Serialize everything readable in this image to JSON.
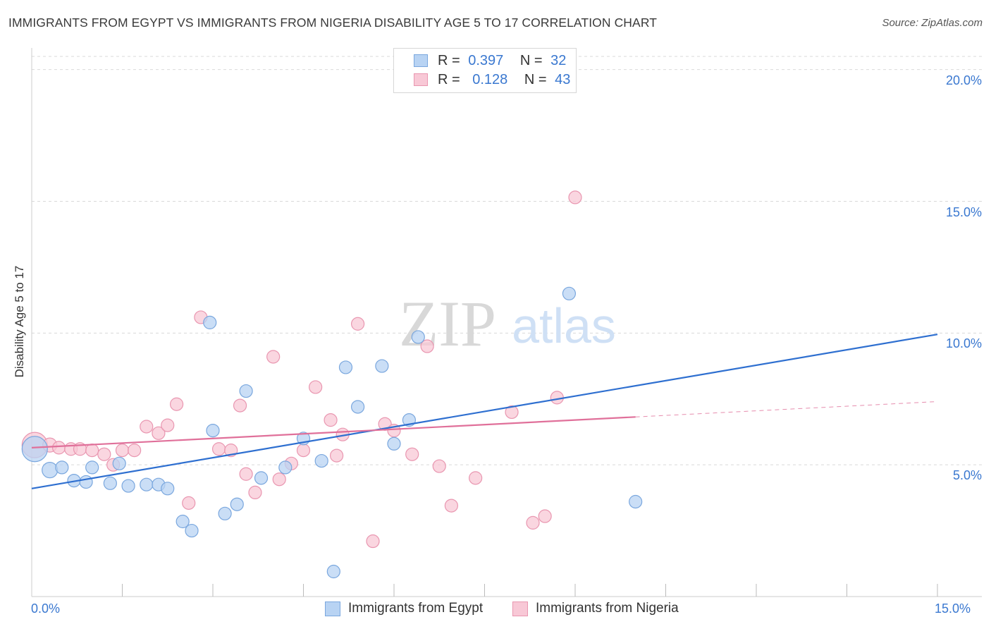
{
  "header": {
    "title": "IMMIGRANTS FROM EGYPT VS IMMIGRANTS FROM NIGERIA DISABILITY AGE 5 TO 17 CORRELATION CHART",
    "source": "Source: ZipAtlas.com"
  },
  "watermark": {
    "zip": "ZIP",
    "atlas": "atlas"
  },
  "legend": {
    "rows": [
      {
        "r_label": "R =",
        "r_value": "0.397",
        "n_label": "N =",
        "n_value": "32",
        "color": "#a9c8f0"
      },
      {
        "r_label": "R =",
        "r_value": "0.128",
        "n_label": "N =",
        "n_value": "43",
        "color": "#f5bccd"
      }
    ]
  },
  "colors": {
    "egypt_fill": "#b8d3f3",
    "egypt_stroke": "#7aa7de",
    "egypt_line": "#2e6fd0",
    "nigeria_fill": "#f8c8d6",
    "nigeria_stroke": "#e996b0",
    "nigeria_line": "#e0709a",
    "grid": "#d9d9d9",
    "tick_label": "#3a78d0"
  },
  "chart_data": {
    "type": "scatter",
    "title": "IMMIGRANTS FROM EGYPT VS IMMIGRANTS FROM NIGERIA DISABILITY AGE 5 TO 17 CORRELATION CHART",
    "xlabel": "",
    "ylabel": "Disability Age 5 to 17",
    "xlim": [
      0,
      15
    ],
    "ylim": [
      0,
      20.5
    ],
    "x_tick_labels": {
      "min": "0.0%",
      "max": "15.0%"
    },
    "y_ticks": [
      {
        "value": 5,
        "label": "5.0%"
      },
      {
        "value": 10,
        "label": "10.0%"
      },
      {
        "value": 15,
        "label": "15.0%"
      },
      {
        "value": 20,
        "label": "20.0%"
      }
    ],
    "x_minor_ticks": [
      1.5,
      3.0,
      4.5,
      6.0,
      7.5,
      9.0,
      10.5,
      12.0,
      13.5,
      15.0
    ],
    "series": [
      {
        "name": "Immigrants from Egypt",
        "r": 0.397,
        "n": 32,
        "trend": {
          "x0": 0,
          "y0": 4.1,
          "x1": 15,
          "y1": 9.95,
          "dash_from": null
        },
        "points": [
          [
            0.05,
            5.6,
            18
          ],
          [
            0.3,
            4.8,
            11
          ],
          [
            0.5,
            4.9,
            9
          ],
          [
            0.7,
            4.4,
            9
          ],
          [
            0.9,
            4.35,
            9
          ],
          [
            1.0,
            4.9,
            9
          ],
          [
            1.3,
            4.3,
            9
          ],
          [
            1.45,
            5.05,
            9
          ],
          [
            1.6,
            4.2,
            9
          ],
          [
            1.9,
            4.25,
            9
          ],
          [
            2.1,
            4.25,
            9
          ],
          [
            2.25,
            4.1,
            9
          ],
          [
            2.5,
            2.85,
            9
          ],
          [
            2.65,
            2.5,
            9
          ],
          [
            2.95,
            10.4,
            9
          ],
          [
            3.0,
            6.3,
            9
          ],
          [
            3.2,
            3.15,
            9
          ],
          [
            3.4,
            3.5,
            9
          ],
          [
            3.55,
            7.8,
            9
          ],
          [
            3.8,
            4.5,
            9
          ],
          [
            4.2,
            4.9,
            9
          ],
          [
            4.5,
            6.0,
            9
          ],
          [
            4.8,
            5.15,
            9
          ],
          [
            5.0,
            0.95,
            9
          ],
          [
            5.2,
            8.7,
            9
          ],
          [
            5.4,
            7.2,
            9
          ],
          [
            5.8,
            8.75,
            9
          ],
          [
            6.0,
            5.8,
            9
          ],
          [
            6.25,
            6.7,
            9
          ],
          [
            6.4,
            9.85,
            9
          ],
          [
            8.9,
            11.5,
            9
          ],
          [
            10.0,
            3.6,
            9
          ]
        ]
      },
      {
        "name": "Immigrants from Nigeria",
        "r": 0.128,
        "n": 43,
        "trend": {
          "x0": 0,
          "y0": 5.65,
          "x1": 15,
          "y1": 7.4,
          "dash_from": 10.0
        },
        "points": [
          [
            0.05,
            5.75,
            18
          ],
          [
            0.3,
            5.75,
            10
          ],
          [
            0.45,
            5.65,
            9
          ],
          [
            0.65,
            5.6,
            9
          ],
          [
            0.8,
            5.6,
            9
          ],
          [
            1.0,
            5.55,
            9
          ],
          [
            1.2,
            5.4,
            9
          ],
          [
            1.35,
            5.0,
            9
          ],
          [
            1.5,
            5.55,
            9
          ],
          [
            1.7,
            5.55,
            9
          ],
          [
            1.9,
            6.45,
            9
          ],
          [
            2.1,
            6.2,
            9
          ],
          [
            2.25,
            6.5,
            9
          ],
          [
            2.4,
            7.3,
            9
          ],
          [
            2.6,
            3.55,
            9
          ],
          [
            2.8,
            10.6,
            9
          ],
          [
            3.1,
            5.6,
            9
          ],
          [
            3.3,
            5.55,
            9
          ],
          [
            3.45,
            7.25,
            9
          ],
          [
            3.55,
            4.65,
            9
          ],
          [
            3.7,
            3.95,
            9
          ],
          [
            4.0,
            9.1,
            9
          ],
          [
            4.1,
            4.45,
            9
          ],
          [
            4.3,
            5.05,
            9
          ],
          [
            4.5,
            5.55,
            9
          ],
          [
            4.7,
            7.95,
            9
          ],
          [
            4.95,
            6.7,
            9
          ],
          [
            5.05,
            5.35,
            9
          ],
          [
            5.15,
            6.15,
            9
          ],
          [
            5.4,
            10.35,
            9
          ],
          [
            5.65,
            2.1,
            9
          ],
          [
            5.85,
            6.55,
            9
          ],
          [
            6.0,
            6.3,
            9
          ],
          [
            6.3,
            5.4,
            9
          ],
          [
            6.55,
            9.5,
            9
          ],
          [
            6.75,
            4.95,
            9
          ],
          [
            6.95,
            3.45,
            9
          ],
          [
            7.35,
            4.5,
            9
          ],
          [
            7.95,
            7.0,
            9
          ],
          [
            8.3,
            2.8,
            9
          ],
          [
            8.5,
            3.05,
            9
          ],
          [
            8.7,
            7.55,
            9
          ],
          [
            9.0,
            15.15,
            9
          ]
        ]
      }
    ]
  },
  "bottom_legend": [
    {
      "label": "Immigrants from Egypt"
    },
    {
      "label": "Immigrants from Nigeria"
    }
  ]
}
